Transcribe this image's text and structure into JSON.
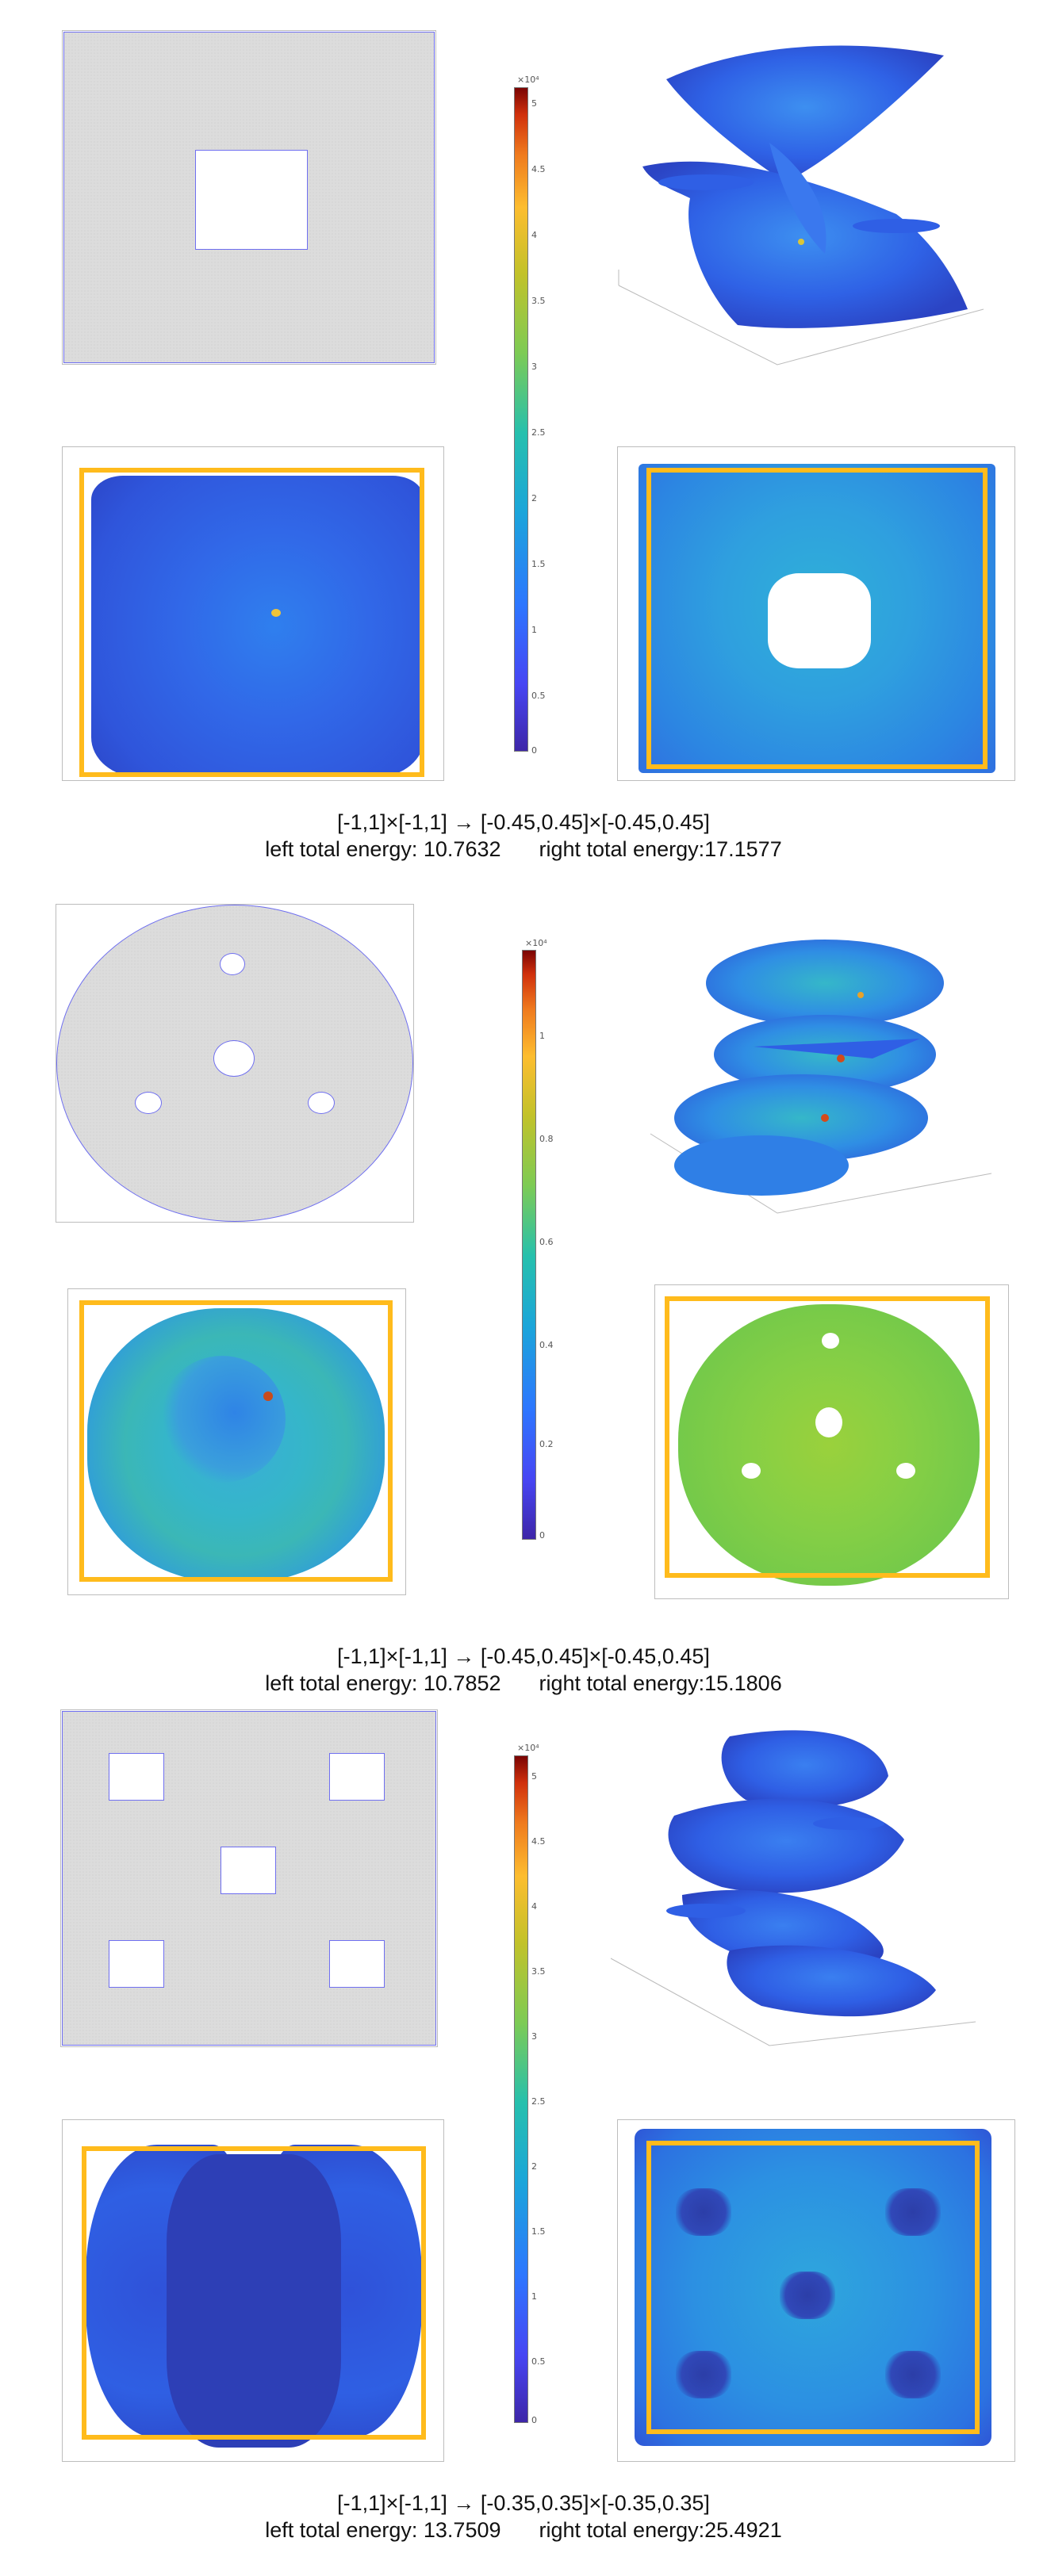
{
  "figures": [
    {
      "colorbar": {
        "exponent": "×10⁴",
        "ticks": [
          "5",
          "4.5",
          "4",
          "3.5",
          "3",
          "2.5",
          "2",
          "1.5",
          "1",
          "0.5",
          "0"
        ]
      },
      "caption": {
        "mapping": "[-1,1]×[-1,1] → [-0.45,0.45]×[-0.45,0.45]",
        "left_energy": "left total energy: 10.7632",
        "right_energy": "right total energy:17.1577"
      }
    },
    {
      "colorbar": {
        "exponent": "×10⁴",
        "ticks": [
          "1",
          "0.8",
          "0.6",
          "0.4",
          "0.2",
          "0"
        ]
      },
      "caption": {
        "mapping": "[-1,1]×[-1,1] → [-0.45,0.45]×[-0.45,0.45]",
        "left_energy": "left total energy: 10.7852",
        "right_energy": "right total energy:15.1806"
      }
    },
    {
      "colorbar": {
        "exponent": "×10⁴",
        "ticks": [
          "5",
          "4.5",
          "4",
          "3.5",
          "3",
          "2.5",
          "2",
          "1.5",
          "1",
          "0.5",
          "0"
        ]
      },
      "caption": {
        "mapping": "[-1,1]×[-1,1] → [-0.35,0.35]×[-0.35,0.35]",
        "left_energy": "left total energy: 13.7509",
        "right_energy": "right total energy:25.4921"
      }
    }
  ],
  "colors": {
    "mesh_outline": "#6f6ff0",
    "target_frame": "#ffbb1c",
    "mesh_fill": "#dcdcdc"
  }
}
